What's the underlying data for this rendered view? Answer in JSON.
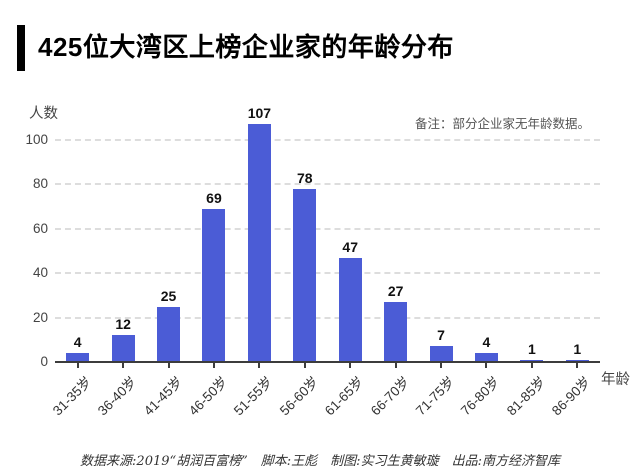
{
  "header": {
    "title": "425位大湾区上榜企业家的年龄分布"
  },
  "note": "备注：部分企业家无年龄数据。",
  "chart_data": {
    "type": "bar",
    "title": "425位大湾区上榜企业家的年龄分布",
    "categories": [
      "31-35岁",
      "36-40岁",
      "41-45岁",
      "46-50岁",
      "51-55岁",
      "56-60岁",
      "61-65岁",
      "66-70岁",
      "71-75岁",
      "76-80岁",
      "81-85岁",
      "86-90岁"
    ],
    "values": [
      4,
      12,
      25,
      69,
      107,
      78,
      47,
      27,
      7,
      4,
      1,
      1
    ],
    "xlabel": "年龄",
    "ylabel": "人数",
    "yticks": [
      0,
      20,
      40,
      60,
      80,
      100
    ],
    "ylim": [
      0,
      110
    ],
    "grid": true,
    "grid_style": "dashed",
    "legend_position": "none",
    "bar_color": "#4b5cd6",
    "axis_color": "#3c3c3c",
    "gridline_color": "#dddddd"
  },
  "footer": {
    "credits": "数据来源:2019“胡润百富榜”　脚本:王彪　制图:实习生黄敏璇　出品:南方经济智库",
    "parts": [
      "数据来源:2019“胡润百富榜”",
      "脚本:王彪",
      "制图:实习生黄敏璇",
      "出品:南方经济智库"
    ]
  }
}
